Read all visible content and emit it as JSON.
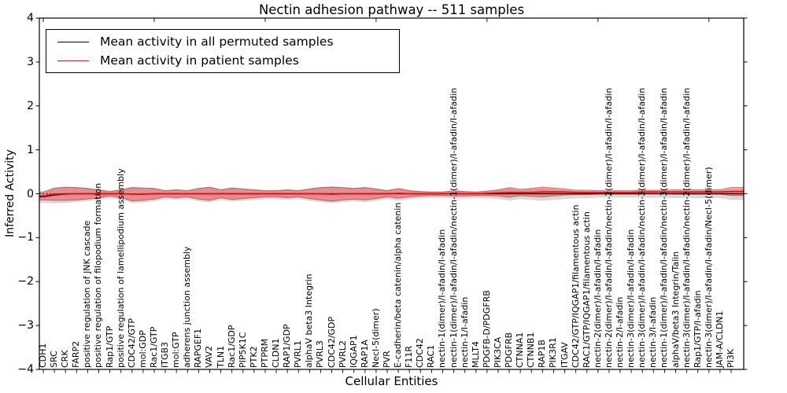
{
  "chart_data": {
    "type": "line",
    "title": "Nectin adhesion pathway -- 511 samples",
    "xlabel": "Cellular Entities",
    "ylabel": "Inferred Activity",
    "ylim": [
      -4,
      4
    ],
    "yticks": [
      4,
      3,
      2,
      1,
      0,
      -1,
      -2,
      -3,
      -4
    ],
    "grid": false,
    "legend_position": "upper left",
    "legend": [
      {
        "label": "Mean activity in all permuted samples",
        "color": "#000000"
      },
      {
        "label": "Mean activity in patient samples",
        "color": "#ff0000"
      }
    ],
    "categories": [
      "CDH1",
      "SRC",
      "CRK",
      "FARP2",
      "positive regulation of JNK cascade",
      "positive regulation of filopodium formation",
      "Rap1/GTP",
      "positive regulation of lamellipodium assembly",
      "CDC42/GTP",
      "mol:GDP",
      "Rac1/GTP",
      "ITGB3",
      "mol:GTP",
      "adherens junction assembly",
      "RAPGEF1",
      "VAV2",
      "TLN1",
      "Rac1/GDP",
      "PIP5K1C",
      "PTK2",
      "PTPRM",
      "CLDN1",
      "RAP1/GDP",
      "PVRL1",
      "alphaV beta3 Integrin",
      "PVRL3",
      "CDC42/GDP",
      "PVRL2",
      "IQGAP1",
      "RAP1A",
      "Necl-5(dimer)",
      "PVR",
      "E-cadherin/beta catenin/alpha catenin",
      "F11R",
      "CDC42",
      "RAC1",
      "nectin-1(dimer)/I-afadin/I-afadin",
      "nectin-1(dimer)/I-afadin/I-afadin/nectin-1(dimer)/I-afadin/I-afadin",
      "nectin-1/I-afadin",
      "MLLT4",
      "PDGFB-D/PDGFRB",
      "PIK3CA",
      "PDGFRB",
      "CTNNA1",
      "CTNNB1",
      "RAP1B",
      "PIK3R1",
      "ITGAV",
      "CDC42/GTP/IQGAP1/filamentous actin",
      "RAC1/GTP/IQGAP1/filamentous actin",
      "nectin-2(dimer)/I-afadin/I-afadin",
      "nectin-2(dimer)/I-afadin/I-afadin/nectin-2(dimer)/I-afadin/I-afadin",
      "nectin-2/I-afadin",
      "nectin-3(dimer)/I-afadin/I-afadin",
      "nectin-3(dimer)/I-afadin/I-afadin/nectin-3(dimer)/I-afadin/I-afadin",
      "nectin-3/I-afadin",
      "nectin-1(dimer)/I-afadin/I-afadin/nectin-3(dimer)/I-afadin/I-afadin",
      "alphaV/beta3 Integrin/Talin",
      "nectin-3(dimer)/I-afadin/I-afadin/nectin-2(dimer)/I-afadin/I-afadin",
      "Rap1/GTP/I-afadin",
      "nectin-3(dimer)/I-afadin/I-afadin/Necl-5(dimer)",
      "JAM-A/CLDN1",
      "PI3K"
    ],
    "series": [
      {
        "name": "Mean activity in all permuted samples",
        "role": "permuted-mean-line",
        "color": "#000000",
        "values": [
          -0.07,
          -0.03,
          -0.01,
          0,
          0,
          0,
          0,
          0,
          -0.01,
          -0.01,
          0,
          0,
          0,
          0,
          0,
          0,
          0,
          0,
          0,
          0,
          0,
          0,
          0,
          0,
          0,
          0,
          0,
          0,
          0,
          0,
          0,
          0,
          0,
          0,
          0,
          0,
          0,
          0,
          0,
          0,
          0,
          0,
          0,
          0,
          0,
          0,
          0,
          0,
          0,
          0,
          0,
          0,
          0,
          0,
          0,
          0,
          0,
          0,
          0,
          0,
          0,
          0,
          0
        ]
      },
      {
        "name": "Mean activity in patient samples",
        "role": "patient-mean-line",
        "color": "#ff0000",
        "values": [
          -0.05,
          -0.01,
          0,
          0,
          0,
          0,
          0,
          0,
          -0.01,
          -0.01,
          0,
          0,
          0,
          0,
          0,
          0,
          0,
          0,
          0,
          0,
          0,
          0,
          0,
          0,
          0,
          0,
          -0.01,
          0,
          0,
          0,
          0,
          0,
          0.01,
          0,
          0,
          0,
          0,
          0.01,
          0,
          0,
          0.01,
          0.02,
          0.03,
          0.03,
          0.03,
          0.04,
          0.04,
          0.04,
          0.03,
          0.03,
          0.03,
          0.03,
          0.03,
          0.03,
          0.04,
          0.04,
          0.04,
          0.04,
          0.04,
          0.04,
          0.04,
          0.04,
          0.05
        ]
      },
      {
        "name": "Patient activity band (half-width around patient mean)",
        "role": "patient-band",
        "fill": "rgba(227,30,36,0.38)",
        "edge": "rgba(200,30,30,0.6)",
        "halfwidths": [
          0.09,
          0.14,
          0.15,
          0.14,
          0.12,
          0.09,
          0.05,
          0.09,
          0.15,
          0.14,
          0.12,
          0.07,
          0.09,
          0.07,
          0.12,
          0.15,
          0.09,
          0.13,
          0.11,
          0.09,
          0.07,
          0.07,
          0.09,
          0.07,
          0.11,
          0.14,
          0.16,
          0.14,
          0.12,
          0.14,
          0.11,
          0.07,
          0.11,
          0.07,
          0.05,
          0.04,
          0.04,
          0.06,
          0.05,
          0.04,
          0.05,
          0.07,
          0.11,
          0.07,
          0.09,
          0.11,
          0.09,
          0.07,
          0.05,
          0.05,
          0.04,
          0.04,
          0.04,
          0.04,
          0.04,
          0.04,
          0.04,
          0.05,
          0.05,
          0.05,
          0.05,
          0.05,
          0.09
        ]
      },
      {
        "name": "Permuted activity band (half-width around permuted mean)",
        "role": "permuted-band",
        "fill": "rgba(128,128,128,0.30)",
        "center_offset": -0.02,
        "halfwidths": [
          0.12,
          0.17,
          0.18,
          0.17,
          0.15,
          0.12,
          0.08,
          0.12,
          0.18,
          0.17,
          0.15,
          0.1,
          0.12,
          0.1,
          0.15,
          0.18,
          0.12,
          0.16,
          0.14,
          0.12,
          0.1,
          0.1,
          0.12,
          0.1,
          0.14,
          0.17,
          0.19,
          0.17,
          0.15,
          0.17,
          0.14,
          0.1,
          0.14,
          0.1,
          0.08,
          0.07,
          0.07,
          0.09,
          0.08,
          0.07,
          0.08,
          0.1,
          0.14,
          0.1,
          0.12,
          0.14,
          0.12,
          0.1,
          0.08,
          0.08,
          0.07,
          0.07,
          0.07,
          0.07,
          0.07,
          0.07,
          0.07,
          0.08,
          0.08,
          0.08,
          0.08,
          0.08,
          0.12
        ]
      }
    ],
    "zero_line": {
      "y": 0,
      "style": "dotted",
      "color": "#000000"
    }
  },
  "colors": {
    "background": "#ffffff",
    "axis": "#000000",
    "patient_line": "#ff0000",
    "permuted_line": "#000000",
    "patient_band_fill": "rgba(227,30,36,0.38)",
    "permuted_band_fill": "rgba(128,128,128,0.30)"
  }
}
